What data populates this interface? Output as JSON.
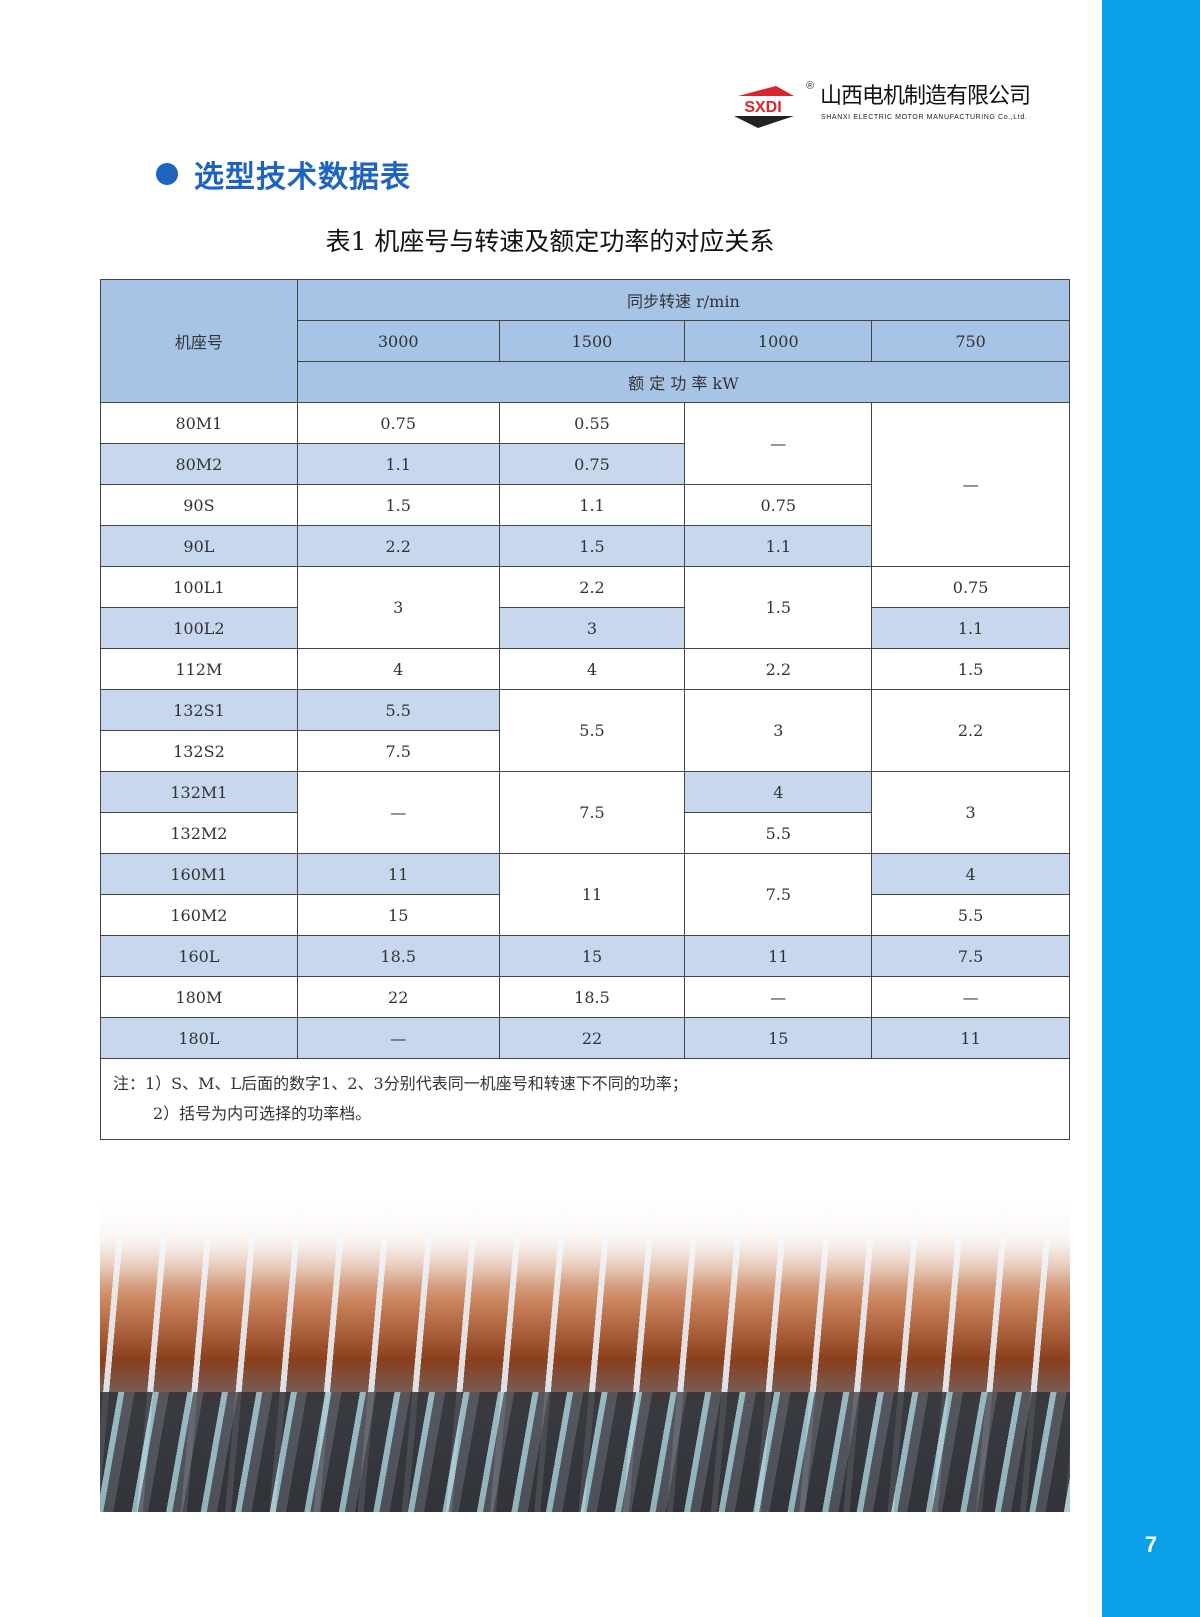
{
  "brand": {
    "logo_text": "SXDI",
    "registered": "®",
    "company_cn": "山西电机制造有限公司",
    "company_en": "SHANXI ELECTRIC MOTOR MANUFACTURING Co.,Ltd.",
    "accent": "#1d63c0",
    "sidebar_color": "#0aa0e8"
  },
  "section_title": "选型技术数据表",
  "table_title": "表1 机座号与转速及额定功率的对应关系",
  "header": {
    "frame": "机座号",
    "speed": "同步转速 r/min",
    "speeds": [
      "3000",
      "1500",
      "1000",
      "750"
    ],
    "power": "额 定 功 率 kW"
  },
  "rows": [
    [
      {
        "v": "80M1"
      },
      {
        "v": "0.75"
      },
      {
        "v": "0.55"
      },
      {
        "v": "—",
        "rs": 2
      },
      {
        "v": "—",
        "rs": 4
      }
    ],
    [
      {
        "v": "80M2",
        "s": 1
      },
      {
        "v": "1.1",
        "s": 1
      },
      {
        "v": "0.75",
        "s": 1
      }
    ],
    [
      {
        "v": "90S"
      },
      {
        "v": "1.5"
      },
      {
        "v": "1.1"
      },
      {
        "v": "0.75"
      }
    ],
    [
      {
        "v": "90L",
        "s": 1
      },
      {
        "v": "2.2",
        "s": 1
      },
      {
        "v": "1.5",
        "s": 1
      },
      {
        "v": "1.1",
        "s": 1
      }
    ],
    [
      {
        "v": "100L1"
      },
      {
        "v": "3",
        "rs": 2
      },
      {
        "v": "2.2"
      },
      {
        "v": "1.5",
        "rs": 2
      },
      {
        "v": "0.75"
      }
    ],
    [
      {
        "v": "100L2",
        "s": 1
      },
      {
        "v": "3",
        "s": 1
      },
      {
        "v": "1.1",
        "s": 1
      }
    ],
    [
      {
        "v": "112M"
      },
      {
        "v": "4"
      },
      {
        "v": "4"
      },
      {
        "v": "2.2"
      },
      {
        "v": "1.5"
      }
    ],
    [
      {
        "v": "132S1",
        "s": 1
      },
      {
        "v": "5.5",
        "s": 1
      },
      {
        "v": "5.5",
        "rs": 2
      },
      {
        "v": "3",
        "rs": 2
      },
      {
        "v": "2.2",
        "rs": 2
      }
    ],
    [
      {
        "v": "132S2"
      },
      {
        "v": "7.5"
      }
    ],
    [
      {
        "v": "132M1",
        "s": 1
      },
      {
        "v": "—",
        "rs": 2
      },
      {
        "v": "7.5",
        "rs": 2
      },
      {
        "v": "4",
        "s": 1
      },
      {
        "v": "3",
        "rs": 2
      }
    ],
    [
      {
        "v": "132M2"
      },
      {
        "v": "5.5"
      }
    ],
    [
      {
        "v": "160M1",
        "s": 1
      },
      {
        "v": "11",
        "s": 1
      },
      {
        "v": "11",
        "rs": 2
      },
      {
        "v": "7.5",
        "rs": 2
      },
      {
        "v": "4",
        "s": 1
      }
    ],
    [
      {
        "v": "160M2"
      },
      {
        "v": "15"
      },
      {
        "v": "5.5"
      }
    ],
    [
      {
        "v": "160L",
        "s": 1
      },
      {
        "v": "18.5",
        "s": 1
      },
      {
        "v": "15",
        "s": 1
      },
      {
        "v": "11",
        "s": 1
      },
      {
        "v": "7.5",
        "s": 1
      }
    ],
    [
      {
        "v": "180M"
      },
      {
        "v": "22"
      },
      {
        "v": "18.5"
      },
      {
        "v": "—"
      },
      {
        "v": "—"
      }
    ],
    [
      {
        "v": "180L",
        "s": 1
      },
      {
        "v": "—",
        "s": 1
      },
      {
        "v": "22",
        "s": 1
      },
      {
        "v": "15",
        "s": 1
      },
      {
        "v": "11",
        "s": 1
      }
    ]
  ],
  "notes": [
    "注：1）S、M、L后面的数字1、2、3分别代表同一机座号和转速下不同的功率；",
    "2）括号为内可选择的功率档。"
  ],
  "page_number": "7"
}
